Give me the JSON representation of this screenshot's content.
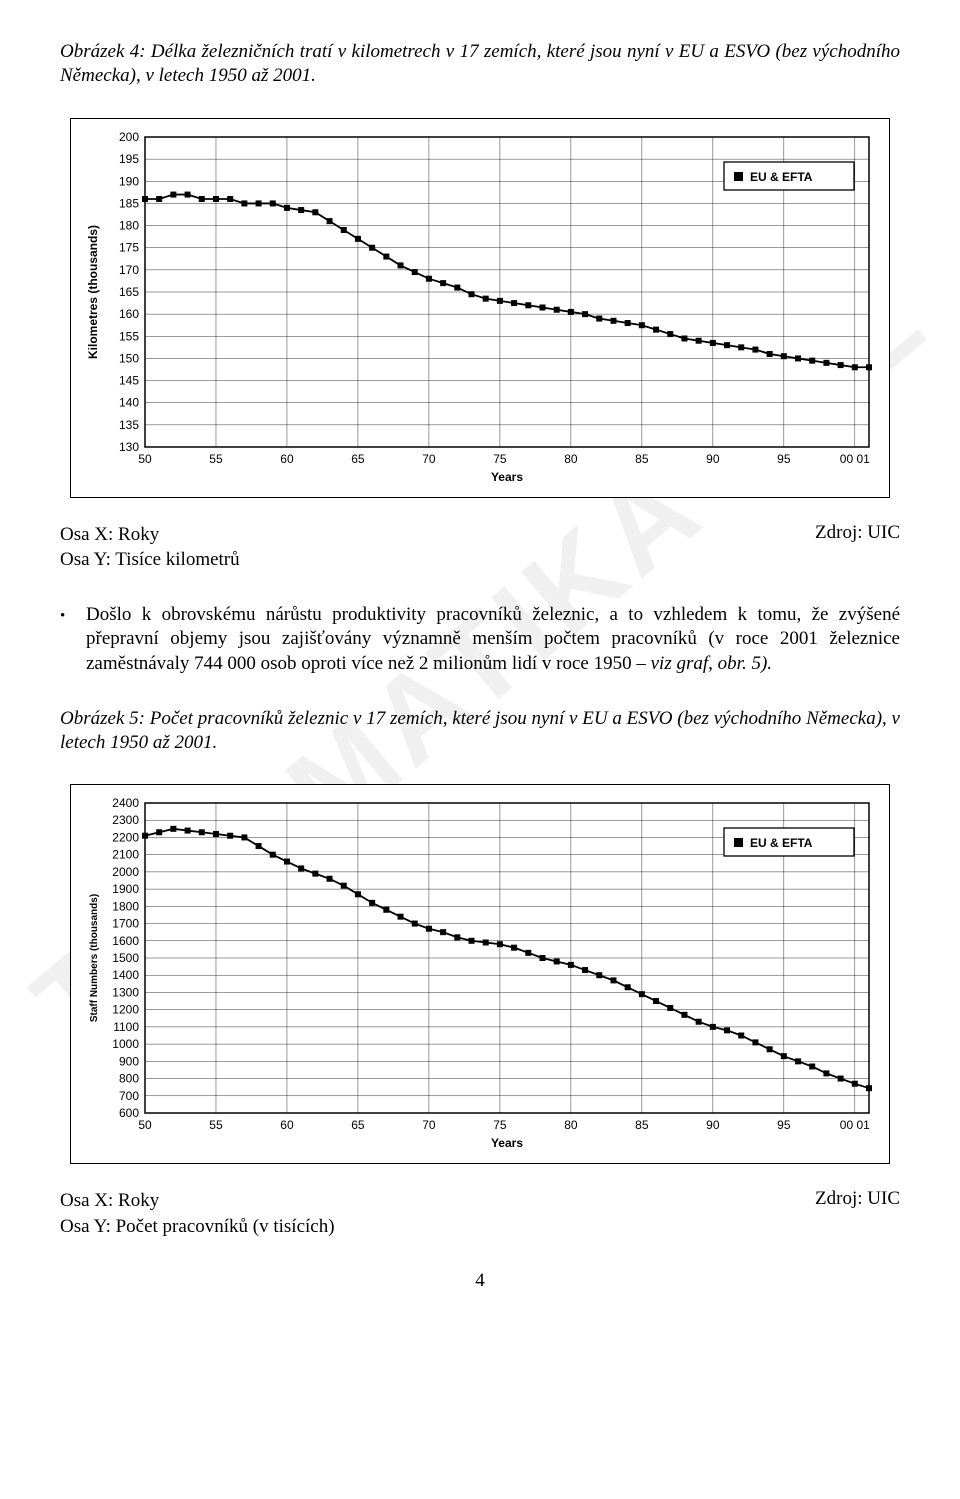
{
  "watermark_text": "TELEMATIKA · CZ",
  "page_number": "4",
  "fig4": {
    "caption": "Obrázek 4: Délka železničních tratí v kilometrech v 17 zemích, které jsou nyní v EU a ESVO (bez východního Německa), v letech 1950 až 2001.",
    "axis_x_label": "Osa X: Roky",
    "axis_y_label": "Osa Y: Tisíce kilometrů",
    "source": "Zdroj: UIC",
    "chart": {
      "type": "line",
      "legend_label": "EU & EFTA",
      "x_axis_title": "Years",
      "y_axis_title": "Kilometres (thousands)",
      "x_ticks": [
        "50",
        "55",
        "60",
        "65",
        "70",
        "75",
        "80",
        "85",
        "90",
        "95",
        "00 01"
      ],
      "y_ticks": [
        130,
        135,
        140,
        145,
        150,
        155,
        160,
        165,
        170,
        175,
        180,
        185,
        190,
        195,
        200
      ],
      "ylim": [
        130,
        200
      ],
      "xlim": [
        1950,
        2001
      ],
      "grid_color": "#000000",
      "grid_width": 0.4,
      "background_color": "#ffffff",
      "line_color": "#000000",
      "line_width": 1.8,
      "marker": "square",
      "marker_size": 6,
      "marker_fill": "#000000",
      "data": [
        {
          "x": 1950,
          "y": 186
        },
        {
          "x": 1951,
          "y": 186
        },
        {
          "x": 1952,
          "y": 187
        },
        {
          "x": 1953,
          "y": 187
        },
        {
          "x": 1954,
          "y": 186
        },
        {
          "x": 1955,
          "y": 186
        },
        {
          "x": 1956,
          "y": 186
        },
        {
          "x": 1957,
          "y": 185
        },
        {
          "x": 1958,
          "y": 185
        },
        {
          "x": 1959,
          "y": 185
        },
        {
          "x": 1960,
          "y": 184
        },
        {
          "x": 1961,
          "y": 183.5
        },
        {
          "x": 1962,
          "y": 183
        },
        {
          "x": 1963,
          "y": 181
        },
        {
          "x": 1964,
          "y": 179
        },
        {
          "x": 1965,
          "y": 177
        },
        {
          "x": 1966,
          "y": 175
        },
        {
          "x": 1967,
          "y": 173
        },
        {
          "x": 1968,
          "y": 171
        },
        {
          "x": 1969,
          "y": 169.5
        },
        {
          "x": 1970,
          "y": 168
        },
        {
          "x": 1971,
          "y": 167
        },
        {
          "x": 1972,
          "y": 166
        },
        {
          "x": 1973,
          "y": 164.5
        },
        {
          "x": 1974,
          "y": 163.5
        },
        {
          "x": 1975,
          "y": 163
        },
        {
          "x": 1976,
          "y": 162.5
        },
        {
          "x": 1977,
          "y": 162
        },
        {
          "x": 1978,
          "y": 161.5
        },
        {
          "x": 1979,
          "y": 161
        },
        {
          "x": 1980,
          "y": 160.5
        },
        {
          "x": 1981,
          "y": 160
        },
        {
          "x": 1982,
          "y": 159
        },
        {
          "x": 1983,
          "y": 158.5
        },
        {
          "x": 1984,
          "y": 158
        },
        {
          "x": 1985,
          "y": 157.5
        },
        {
          "x": 1986,
          "y": 156.5
        },
        {
          "x": 1987,
          "y": 155.5
        },
        {
          "x": 1988,
          "y": 154.5
        },
        {
          "x": 1989,
          "y": 154
        },
        {
          "x": 1990,
          "y": 153.5
        },
        {
          "x": 1991,
          "y": 153
        },
        {
          "x": 1992,
          "y": 152.5
        },
        {
          "x": 1993,
          "y": 152
        },
        {
          "x": 1994,
          "y": 151
        },
        {
          "x": 1995,
          "y": 150.5
        },
        {
          "x": 1996,
          "y": 150
        },
        {
          "x": 1997,
          "y": 149.5
        },
        {
          "x": 1998,
          "y": 149
        },
        {
          "x": 1999,
          "y": 148.5
        },
        {
          "x": 2000,
          "y": 148
        },
        {
          "x": 2001,
          "y": 148
        }
      ]
    }
  },
  "bullet": {
    "prefix": "Došlo k obrovskému nárůstu produktivity pracovníků železnic",
    "rest": ", a to vzhledem k tomu, že zvýšené přepravní objemy jsou zajišťovány významně menším počtem pracovníků (v roce 2001 železnice zaměstnávaly 744 000 osob oproti více než 2 milionům lidí v roce 1950 – ",
    "italic": "viz graf, obr. 5).",
    "bullet_char": "•"
  },
  "fig5": {
    "caption": "Obrázek 5: Počet pracovníků železnic v 17 zemích, které jsou nyní v EU a ESVO (bez východního Německa), v letech 1950 až 2001.",
    "axis_x_label": "Osa X: Roky",
    "axis_y_label": "Osa Y: Počet pracovníků (v tisících)",
    "source": "Zdroj: UIC",
    "chart": {
      "type": "line",
      "legend_label": "EU & EFTA",
      "x_axis_title": "Years",
      "y_axis_title": "Staff Numbers (thousands)",
      "x_ticks": [
        "50",
        "55",
        "60",
        "65",
        "70",
        "75",
        "80",
        "85",
        "90",
        "95",
        "00 01"
      ],
      "y_ticks": [
        600,
        700,
        800,
        900,
        1000,
        1100,
        1200,
        1300,
        1400,
        1500,
        1600,
        1700,
        1800,
        1900,
        2000,
        2100,
        2200,
        2300,
        2400
      ],
      "ylim": [
        600,
        2400
      ],
      "xlim": [
        1950,
        2001
      ],
      "grid_color": "#000000",
      "grid_width": 0.4,
      "background_color": "#ffffff",
      "line_color": "#000000",
      "line_width": 1.8,
      "marker": "square",
      "marker_size": 6,
      "marker_fill": "#000000",
      "data": [
        {
          "x": 1950,
          "y": 2210
        },
        {
          "x": 1951,
          "y": 2230
        },
        {
          "x": 1952,
          "y": 2250
        },
        {
          "x": 1953,
          "y": 2240
        },
        {
          "x": 1954,
          "y": 2230
        },
        {
          "x": 1955,
          "y": 2220
        },
        {
          "x": 1956,
          "y": 2210
        },
        {
          "x": 1957,
          "y": 2200
        },
        {
          "x": 1958,
          "y": 2150
        },
        {
          "x": 1959,
          "y": 2100
        },
        {
          "x": 1960,
          "y": 2060
        },
        {
          "x": 1961,
          "y": 2020
        },
        {
          "x": 1962,
          "y": 1990
        },
        {
          "x": 1963,
          "y": 1960
        },
        {
          "x": 1964,
          "y": 1920
        },
        {
          "x": 1965,
          "y": 1870
        },
        {
          "x": 1966,
          "y": 1820
        },
        {
          "x": 1967,
          "y": 1780
        },
        {
          "x": 1968,
          "y": 1740
        },
        {
          "x": 1969,
          "y": 1700
        },
        {
          "x": 1970,
          "y": 1670
        },
        {
          "x": 1971,
          "y": 1650
        },
        {
          "x": 1972,
          "y": 1620
        },
        {
          "x": 1973,
          "y": 1600
        },
        {
          "x": 1974,
          "y": 1590
        },
        {
          "x": 1975,
          "y": 1580
        },
        {
          "x": 1976,
          "y": 1560
        },
        {
          "x": 1977,
          "y": 1530
        },
        {
          "x": 1978,
          "y": 1500
        },
        {
          "x": 1979,
          "y": 1480
        },
        {
          "x": 1980,
          "y": 1460
        },
        {
          "x": 1981,
          "y": 1430
        },
        {
          "x": 1982,
          "y": 1400
        },
        {
          "x": 1983,
          "y": 1370
        },
        {
          "x": 1984,
          "y": 1330
        },
        {
          "x": 1985,
          "y": 1290
        },
        {
          "x": 1986,
          "y": 1250
        },
        {
          "x": 1987,
          "y": 1210
        },
        {
          "x": 1988,
          "y": 1170
        },
        {
          "x": 1989,
          "y": 1130
        },
        {
          "x": 1990,
          "y": 1100
        },
        {
          "x": 1991,
          "y": 1080
        },
        {
          "x": 1992,
          "y": 1050
        },
        {
          "x": 1993,
          "y": 1010
        },
        {
          "x": 1994,
          "y": 970
        },
        {
          "x": 1995,
          "y": 930
        },
        {
          "x": 1996,
          "y": 900
        },
        {
          "x": 1997,
          "y": 870
        },
        {
          "x": 1998,
          "y": 830
        },
        {
          "x": 1999,
          "y": 800
        },
        {
          "x": 2000,
          "y": 770
        },
        {
          "x": 2001,
          "y": 744
        }
      ]
    }
  }
}
